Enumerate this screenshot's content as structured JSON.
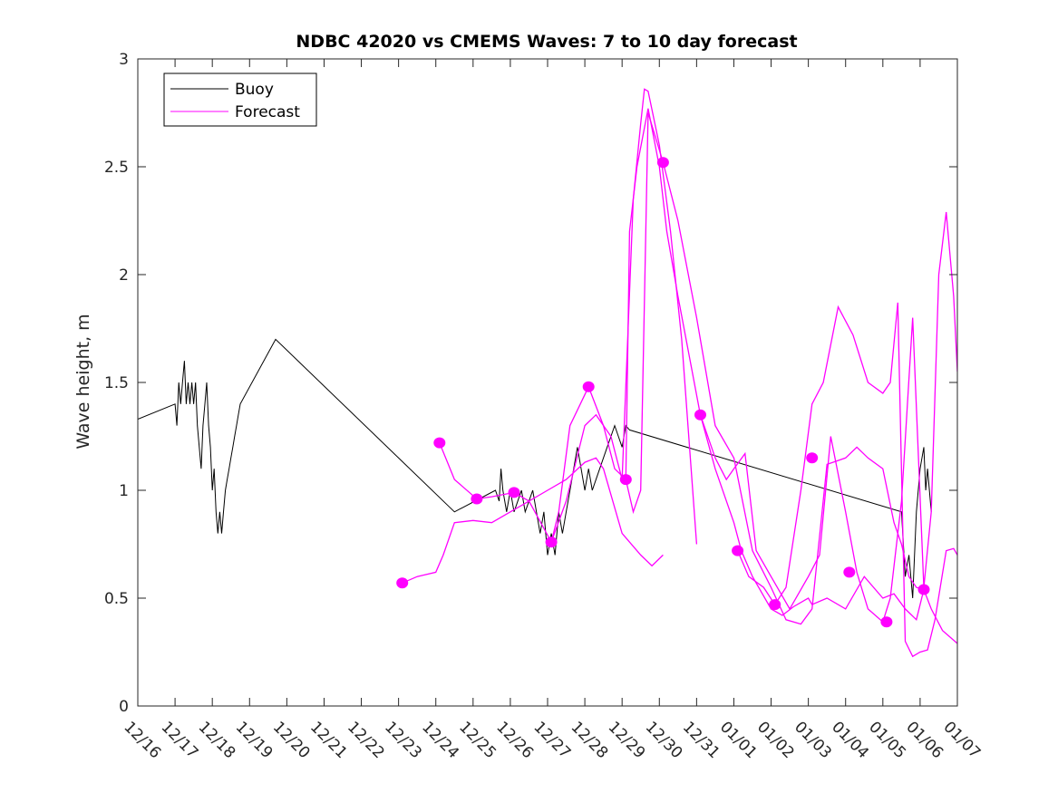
{
  "chart_data": {
    "type": "line",
    "title": "NDBC 42020 vs CMEMS Waves: 7 to 10 day forecast",
    "ylabel": "Wave height, m",
    "xlabel": "",
    "xlim": [
      0,
      22
    ],
    "ylim": [
      0,
      3
    ],
    "yticks": [
      0,
      0.5,
      1,
      1.5,
      2,
      2.5,
      3
    ],
    "ytick_labels": [
      "0",
      "0.5",
      "1",
      "1.5",
      "2",
      "2.5",
      "3"
    ],
    "xticks": [
      0,
      1,
      2,
      3,
      4,
      5,
      6,
      7,
      8,
      9,
      10,
      11,
      12,
      13,
      14,
      15,
      16,
      17,
      18,
      19,
      20,
      21,
      22
    ],
    "xtick_labels": [
      "12/16",
      "12/17",
      "12/18",
      "12/19",
      "12/20",
      "12/21",
      "12/22",
      "12/23",
      "12/24",
      "12/25",
      "12/26",
      "12/27",
      "12/28",
      "12/29",
      "12/30",
      "12/31",
      "01/01",
      "01/02",
      "01/03",
      "01/04",
      "01/05",
      "01/06",
      "01/07"
    ],
    "legend": {
      "placement": "top-left",
      "entries": [
        "Buoy",
        "Forecast"
      ]
    },
    "colors": {
      "buoy": "#000000",
      "forecast": "#ff00ff"
    },
    "buoy": {
      "name": "Buoy",
      "x": [
        0,
        1.0,
        1.05,
        1.1,
        1.15,
        1.2,
        1.25,
        1.3,
        1.35,
        1.4,
        1.45,
        1.5,
        1.55,
        1.6,
        1.65,
        1.7,
        1.75,
        1.8,
        1.85,
        1.9,
        1.95,
        2.0,
        2.05,
        2.1,
        2.15,
        2.2,
        2.25,
        2.3,
        2.35,
        2.4,
        2.45,
        2.5,
        2.55,
        2.6,
        2.65,
        2.7,
        2.75,
        3.7,
        8.5,
        9.6,
        9.7,
        9.75,
        9.8,
        9.9,
        10.0,
        10.1,
        10.2,
        10.3,
        10.4,
        10.5,
        10.6,
        10.7,
        10.8,
        10.9,
        11.0,
        11.1,
        11.2,
        11.3,
        11.4,
        11.5,
        11.6,
        11.7,
        11.8,
        11.9,
        12.0,
        12.1,
        12.2,
        12.3,
        12.4,
        12.5,
        12.6,
        12.7,
        12.8,
        12.9,
        13.0,
        13.1,
        13.2,
        20.5,
        20.6,
        20.7,
        20.8,
        20.9,
        21.0,
        21.1,
        21.15,
        21.2,
        21.3
      ],
      "values": [
        1.33,
        1.4,
        1.3,
        1.5,
        1.4,
        1.5,
        1.6,
        1.4,
        1.5,
        1.4,
        1.5,
        1.4,
        1.5,
        1.3,
        1.2,
        1.1,
        1.3,
        1.4,
        1.5,
        1.3,
        1.2,
        1.0,
        1.1,
        0.9,
        0.8,
        0.9,
        0.8,
        0.9,
        1.0,
        1.05,
        1.1,
        1.15,
        1.2,
        1.25,
        1.3,
        1.35,
        1.4,
        1.7,
        0.9,
        1.0,
        0.95,
        1.1,
        1.0,
        0.9,
        1.0,
        0.9,
        0.95,
        1.0,
        0.9,
        0.95,
        1.0,
        0.9,
        0.8,
        0.9,
        0.7,
        0.8,
        0.7,
        0.9,
        0.8,
        0.9,
        1.0,
        1.1,
        1.2,
        1.1,
        1.0,
        1.1,
        1.0,
        1.05,
        1.1,
        1.15,
        1.2,
        1.25,
        1.3,
        1.25,
        1.2,
        1.3,
        1.28,
        0.9,
        0.6,
        0.7,
        0.5,
        0.9,
        1.1,
        1.2,
        1.0,
        1.1,
        0.9
      ]
    },
    "forecasts": [
      {
        "name": "Forecast",
        "x": [
          7.1,
          7.5,
          8.0,
          8.2,
          8.5,
          9.0,
          9.5,
          10.0,
          10.5,
          11.0,
          11.5,
          12.0,
          12.3,
          12.5,
          13.0,
          13.5,
          13.8,
          14.1
        ],
        "values": [
          0.57,
          0.6,
          0.62,
          0.7,
          0.85,
          0.86,
          0.85,
          0.9,
          0.95,
          1.0,
          1.05,
          1.13,
          1.15,
          1.1,
          0.8,
          0.7,
          0.65,
          0.7
        ]
      },
      {
        "name": "Forecast",
        "x": [
          8.1,
          8.5,
          9.1,
          9.5,
          10.1,
          10.5,
          11.1,
          11.5,
          12.0,
          12.3,
          12.7,
          13.0,
          13.3,
          13.5,
          13.6,
          13.7,
          14.0,
          14.3,
          14.6,
          15.0
        ],
        "values": [
          1.22,
          1.05,
          0.96,
          0.97,
          0.99,
          0.95,
          0.76,
          0.95,
          1.3,
          1.35,
          1.25,
          1.05,
          2.35,
          2.7,
          2.86,
          2.85,
          2.6,
          2.2,
          1.7,
          0.75
        ]
      },
      {
        "name": "Forecast",
        "x": [
          11.1,
          11.3,
          11.6,
          12.1,
          12.5,
          12.8,
          13.1,
          13.2,
          13.4,
          13.7,
          14.0,
          14.2,
          14.5,
          15.1,
          15.5,
          16.0,
          16.2,
          16.5,
          17.0,
          17.3,
          17.6,
          18.0,
          18.1,
          18.5,
          19.0,
          19.5,
          20.0,
          20.3,
          20.6,
          20.9,
          21.1
        ],
        "values": [
          0.76,
          0.9,
          1.3,
          1.48,
          1.3,
          1.1,
          1.05,
          2.2,
          2.5,
          2.77,
          2.5,
          2.2,
          1.9,
          1.35,
          1.1,
          0.85,
          0.72,
          0.6,
          0.45,
          0.42,
          0.46,
          0.5,
          0.47,
          0.5,
          0.45,
          0.6,
          0.5,
          0.52,
          0.45,
          0.4,
          0.54
        ]
      },
      {
        "name": "Forecast",
        "x": [
          13.1,
          13.3,
          13.5,
          13.7,
          14.1,
          14.5,
          15.0,
          15.5,
          16.0,
          16.5,
          17.0,
          17.4,
          17.8,
          18.1,
          18.5,
          19.0,
          19.3,
          19.6,
          20.0,
          20.3,
          20.5,
          20.7,
          20.9,
          21.1,
          21.3,
          21.6,
          22.0
        ],
        "values": [
          1.05,
          0.9,
          1.0,
          2.75,
          2.52,
          2.25,
          1.8,
          1.3,
          1.15,
          0.72,
          0.55,
          0.4,
          0.38,
          0.45,
          1.12,
          1.15,
          1.2,
          1.15,
          1.1,
          0.85,
          0.75,
          0.6,
          0.55,
          0.54,
          0.45,
          0.35,
          0.29
        ]
      },
      {
        "name": "Forecast",
        "x": [
          15.1,
          15.5,
          15.8,
          16.0,
          16.3,
          16.6,
          17.0,
          17.5,
          18.0,
          18.3,
          18.6,
          19.0,
          19.3,
          19.6,
          20.0,
          20.2,
          20.5,
          20.8,
          21.1,
          21.3,
          21.5,
          21.7,
          21.9,
          22.0
        ],
        "values": [
          1.35,
          1.15,
          1.05,
          1.1,
          1.17,
          0.72,
          0.6,
          0.45,
          0.6,
          0.7,
          1.25,
          0.9,
          0.62,
          0.45,
          0.39,
          0.5,
          0.95,
          1.8,
          0.55,
          0.9,
          2.0,
          2.29,
          1.9,
          1.55
        ]
      },
      {
        "name": "Forecast",
        "x": [
          16.1,
          16.4,
          16.8,
          17.1,
          17.4,
          17.8,
          18.1,
          18.4,
          18.8,
          19.2,
          19.6,
          20.0,
          20.2,
          20.4,
          20.6,
          20.8,
          21.0,
          21.2,
          21.4,
          21.7,
          21.9,
          22.0
        ],
        "values": [
          0.72,
          0.6,
          0.55,
          0.47,
          0.55,
          1.0,
          1.4,
          1.5,
          1.85,
          1.72,
          1.5,
          1.45,
          1.5,
          1.87,
          0.3,
          0.23,
          0.25,
          0.26,
          0.4,
          0.72,
          0.73,
          0.7
        ]
      }
    ],
    "markers": [
      {
        "x": 7.1,
        "y": 0.57
      },
      {
        "x": 8.1,
        "y": 1.22
      },
      {
        "x": 9.1,
        "y": 0.96
      },
      {
        "x": 10.1,
        "y": 0.99
      },
      {
        "x": 11.1,
        "y": 0.76
      },
      {
        "x": 12.1,
        "y": 1.48
      },
      {
        "x": 13.1,
        "y": 1.05
      },
      {
        "x": 14.1,
        "y": 2.52
      },
      {
        "x": 15.1,
        "y": 1.35
      },
      {
        "x": 16.1,
        "y": 0.72
      },
      {
        "x": 17.1,
        "y": 0.47
      },
      {
        "x": 18.1,
        "y": 1.15
      },
      {
        "x": 19.1,
        "y": 0.62
      },
      {
        "x": 20.1,
        "y": 0.39
      },
      {
        "x": 21.1,
        "y": 0.54
      }
    ]
  }
}
